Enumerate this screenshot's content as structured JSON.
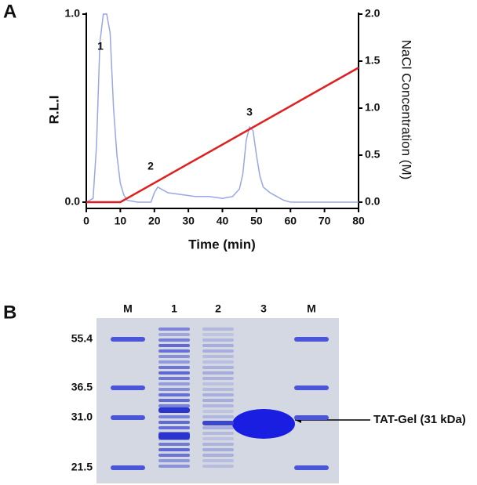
{
  "panels": [
    "A",
    "B"
  ],
  "chart_data": {
    "type": "line",
    "x_label": "Time (min)",
    "y_label": "R.L.I",
    "y2_label": "NaCl Concentration (M)",
    "xlim": [
      0,
      80
    ],
    "xticks": [
      0,
      10,
      20,
      30,
      40,
      50,
      60,
      70,
      80
    ],
    "ylim": [
      0,
      1
    ],
    "yticks": [
      {
        "value": 0,
        "label": "0.0"
      },
      {
        "value": 1,
        "label": "1.0"
      }
    ],
    "y2lim": [
      0,
      2
    ],
    "y2ticks": [
      {
        "value": 0,
        "label": "0.0"
      },
      {
        "value": 0.5,
        "label": "0.5"
      },
      {
        "value": 1,
        "label": "1.0"
      },
      {
        "value": 1.5,
        "label": "1.5"
      },
      {
        "value": 2,
        "label": "2.0"
      }
    ],
    "annotations": [
      "1",
      "2",
      "3"
    ],
    "series": [
      {
        "color": "#9aa6e6",
        "axis": "y",
        "x": [
          0,
          2,
          3,
          4,
          5,
          6,
          7,
          8,
          9,
          10,
          11,
          12,
          15,
          19,
          20,
          21,
          22,
          24,
          28,
          32,
          36,
          40,
          43,
          45,
          46,
          47,
          48,
          49,
          50,
          51,
          52,
          54,
          56,
          58,
          60,
          70,
          80
        ],
        "values": [
          0,
          0.02,
          0.3,
          0.85,
          1.0,
          1.0,
          0.9,
          0.5,
          0.25,
          0.1,
          0.04,
          0.01,
          0,
          0,
          0.05,
          0.08,
          0.07,
          0.05,
          0.04,
          0.03,
          0.03,
          0.02,
          0.03,
          0.07,
          0.15,
          0.33,
          0.4,
          0.38,
          0.25,
          0.14,
          0.08,
          0.05,
          0.03,
          0.01,
          0,
          0,
          0
        ]
      },
      {
        "color": "#e02020",
        "axis": "y2",
        "x": [
          0,
          10,
          80
        ],
        "values": [
          0,
          0,
          1.43
        ]
      }
    ]
  },
  "gel": {
    "lanes": [
      "M",
      "1",
      "2",
      "3",
      "M"
    ],
    "markers": [
      "55.4",
      "36.5",
      "31.0",
      "21.5"
    ],
    "band_label": "TAT-Gel (31 kDa)"
  }
}
